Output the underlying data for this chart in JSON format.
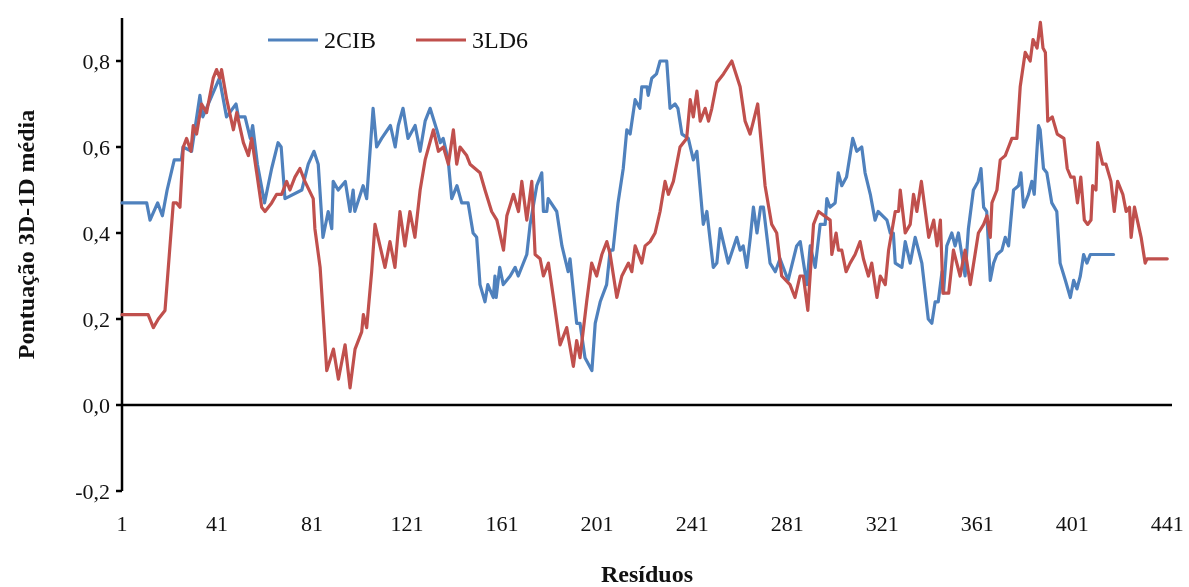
{
  "chart_data": {
    "type": "line",
    "xlabel": "Resíduos",
    "ylabel": "Pontuação 3D-1D média",
    "xlim": [
      1,
      443
    ],
    "xticks": [
      1,
      41,
      81,
      121,
      161,
      201,
      241,
      281,
      321,
      361,
      401,
      441
    ],
    "ylim": [
      -0.2,
      0.9
    ],
    "yticks": [
      {
        "value": -0.2,
        "label": "-0,2"
      },
      {
        "value": 0,
        "label": "0,0"
      },
      {
        "value": 0.2,
        "label": "0,2"
      },
      {
        "value": 0.4,
        "label": "0,4"
      },
      {
        "value": 0.6,
        "label": "0,6"
      },
      {
        "value": 0.8,
        "label": "0,8"
      }
    ],
    "legend": "top",
    "marker": "none",
    "line_style": "solid",
    "series": [
      {
        "name": "2CIB",
        "color": "#4f81bd",
        "x": [
          1,
          11.4,
          12.8,
          16,
          18,
          20,
          23,
          26,
          26.7,
          30.3,
          33.8,
          35,
          42,
          45,
          49,
          50,
          52.8,
          55,
          56,
          58,
          61,
          64,
          66.7,
          68,
          69.6,
          76.7,
          79.4,
          81.8,
          83.6,
          85.6,
          87.8,
          89.3,
          89.9,
          92,
          95,
          97,
          98.3,
          99,
          102.5,
          104,
          106.7,
          108.2,
          110.3,
          114,
          116,
          117.3,
          119.3,
          121.4,
          124.4,
          126.5,
          128.6,
          130.7,
          133.5,
          135,
          136.2,
          138.3,
          139.8,
          142,
          144,
          146.7,
          148.8,
          150.3,
          151.7,
          153.8,
          155,
          157.3,
          158,
          158.5,
          160,
          161.5,
          164.4,
          166.5,
          167.8,
          171.4,
          172.8,
          175.6,
          177.7,
          178.4,
          179.8,
          180.4,
          184,
          186.2,
          188.8,
          189.6,
          192.4,
          193.8,
          195.9,
          198.8,
          200.2,
          202.3,
          205,
          206.5,
          207.7,
          209.8,
          212,
          213.5,
          214.9,
          217,
          219,
          219.8,
          222,
          222.5,
          224,
          226,
          227.5,
          230.3,
          231.7,
          233.8,
          235,
          236.7,
          239.4,
          241.5,
          243,
          245.7,
          247.2,
          249.9,
          251.4,
          252.8,
          256.2,
          259.8,
          261.2,
          262.5,
          264,
          265.5,
          266.8,
          268.3,
          269.8,
          271,
          273.8,
          276,
          278,
          281.4,
          285,
          286.5,
          289.3,
          290.7,
          292.8,
          294.9,
          297,
          297.7,
          299,
          301.2,
          302.5,
          304,
          306,
          308.6,
          310.3,
          312.4,
          313.8,
          316,
          318,
          319.3,
          323,
          324.4,
          325.7,
          326.5,
          329.3,
          330.7,
          332.8,
          334.9,
          337.7,
          340.4,
          341.9,
          343.3,
          344.6,
          346.2,
          346.8,
          348.2,
          350.3,
          351.7,
          353.1,
          355.9,
          357.3,
          359.4,
          361.4,
          362.6,
          363.7,
          365,
          366.5,
          367.9,
          369.3,
          371.4,
          372.8,
          374.2,
          376.3,
          378.4,
          379.4,
          380.5,
          382.6,
          384,
          385,
          386.8,
          387.5,
          388.9,
          390.3,
          392.4,
          394.5,
          395.9,
          398.1,
          400.2,
          401.6,
          403,
          404.4,
          405.8,
          407.2,
          408.6,
          418.4
        ],
        "values": [
          0.47,
          0.47,
          0.43,
          0.47,
          0.44,
          0.5,
          0.57,
          0.57,
          0.6,
          0.59,
          0.72,
          0.67,
          0.76,
          0.67,
          0.7,
          0.67,
          0.67,
          0.62,
          0.65,
          0.56,
          0.47,
          0.55,
          0.61,
          0.6,
          0.48,
          0.5,
          0.56,
          0.59,
          0.56,
          0.39,
          0.45,
          0.41,
          0.52,
          0.5,
          0.52,
          0.45,
          0.5,
          0.45,
          0.51,
          0.48,
          0.69,
          0.6,
          0.62,
          0.65,
          0.6,
          0.65,
          0.69,
          0.62,
          0.65,
          0.59,
          0.66,
          0.69,
          0.64,
          0.61,
          0.62,
          0.57,
          0.48,
          0.51,
          0.47,
          0.47,
          0.4,
          0.39,
          0.28,
          0.24,
          0.28,
          0.25,
          0.3,
          0.25,
          0.32,
          0.28,
          0.3,
          0.32,
          0.3,
          0.35,
          0.42,
          0.51,
          0.54,
          0.45,
          0.45,
          0.48,
          0.45,
          0.37,
          0.31,
          0.34,
          0.19,
          0.19,
          0.11,
          0.08,
          0.19,
          0.24,
          0.28,
          0.36,
          0.36,
          0.47,
          0.55,
          0.64,
          0.63,
          0.71,
          0.69,
          0.74,
          0.74,
          0.72,
          0.76,
          0.77,
          0.8,
          0.8,
          0.69,
          0.7,
          0.69,
          0.63,
          0.62,
          0.57,
          0.59,
          0.42,
          0.45,
          0.32,
          0.33,
          0.41,
          0.33,
          0.39,
          0.36,
          0.37,
          0.32,
          0.39,
          0.46,
          0.4,
          0.46,
          0.46,
          0.33,
          0.31,
          0.34,
          0.29,
          0.37,
          0.38,
          0.28,
          0.37,
          0.32,
          0.42,
          0.42,
          0.48,
          0.46,
          0.47,
          0.54,
          0.51,
          0.53,
          0.62,
          0.59,
          0.6,
          0.54,
          0.49,
          0.43,
          0.45,
          0.43,
          0.4,
          0.4,
          0.33,
          0.32,
          0.38,
          0.33,
          0.39,
          0.33,
          0.2,
          0.19,
          0.24,
          0.24,
          0.31,
          0.26,
          0.37,
          0.4,
          0.37,
          0.4,
          0.3,
          0.41,
          0.5,
          0.52,
          0.55,
          0.46,
          0.45,
          0.29,
          0.33,
          0.35,
          0.36,
          0.39,
          0.37,
          0.5,
          0.51,
          0.54,
          0.46,
          0.49,
          0.52,
          0.49,
          0.65,
          0.64,
          0.55,
          0.54,
          0.47,
          0.45,
          0.33,
          0.29,
          0.25,
          0.29,
          0.27,
          0.3,
          0.35,
          0.33,
          0.35,
          0.35
        ]
      },
      {
        "name": "3LD6",
        "color": "#c0504d",
        "x": [
          1,
          12,
          14.2,
          16.3,
          17.7,
          19.1,
          20.5,
          22.6,
          24,
          25.4,
          26.8,
          28.2,
          30,
          31,
          32.4,
          34.5,
          36.6,
          39.4,
          40.8,
          42.2,
          42.9,
          45.1,
          47.9,
          49.3,
          52.1,
          54.2,
          55.6,
          59.8,
          61.2,
          64,
          66.1,
          68.2,
          70.3,
          71.7,
          73.8,
          75.9,
          78,
          81.5,
          82.2,
          84.4,
          87.2,
          90,
          92.1,
          94.9,
          97,
          99.1,
          101.9,
          102.6,
          104,
          106.1,
          107.5,
          111.7,
          113.8,
          115.9,
          118,
          120.1,
          122.2,
          124.3,
          126.5,
          128.6,
          132.1,
          134.2,
          136.3,
          138.4,
          140.5,
          141.9,
          143.3,
          146.1,
          147.5,
          149.6,
          151.7,
          153.8,
          156.6,
          158.8,
          161.6,
          163,
          165.8,
          167.9,
          169.3,
          171.4,
          173.5,
          174.9,
          177,
          178.4,
          180.5,
          182.6,
          185.4,
          188.2,
          191,
          192.4,
          193.8,
          196.6,
          198.7,
          200.8,
          203,
          205.1,
          206.5,
          209.3,
          211.4,
          214.2,
          215.6,
          217,
          219.8,
          221.2,
          223.3,
          225.4,
          227.5,
          229.6,
          231,
          233.1,
          235.9,
          238.7,
          240.2,
          241.5,
          243,
          244.4,
          246.5,
          247.9,
          249.3,
          251.4,
          254.2,
          257.7,
          261.2,
          263.3,
          265.4,
          266.8,
          268.6,
          271.7,
          274.5,
          276.6,
          278.7,
          282.2,
          284.3,
          286.4,
          287.8,
          289.7,
          292.1,
          294.2,
          299.1,
          299.8,
          301.6,
          302.6,
          304,
          305.8,
          307.5,
          309.6,
          311.7,
          313.1,
          315.2,
          316.6,
          318.8,
          320.2,
          322.3,
          323.7,
          326.5,
          327.9,
          328.6,
          330.7,
          332.8,
          334.2,
          335.6,
          337.5,
          340.6,
          342.7,
          344.1,
          345.5,
          346.6,
          349,
          351,
          353.8,
          355.9,
          358.1,
          361.5,
          363.7,
          365.1,
          366.5,
          367.2,
          369.3,
          370.7,
          372.8,
          374.2,
          375.6,
          377.7,
          379.1,
          381.2,
          383.3,
          384.5,
          386.2,
          387.6,
          388.7,
          389.7,
          390.7,
          392.6,
          394.7,
          397.5,
          398.9,
          400.4,
          401.8,
          403.2,
          404.6,
          406.1,
          407.5,
          408.9,
          409.6,
          411,
          411.7,
          413.8,
          415.2,
          417.3,
          418.7,
          420.1,
          422.3,
          423.7,
          425.1,
          425.8,
          427.2,
          430,
          431.7,
          432.5,
          441
        ],
        "values": [
          0.21,
          0.21,
          0.18,
          0.2,
          0.21,
          0.22,
          0.32,
          0.47,
          0.47,
          0.46,
          0.6,
          0.62,
          0.59,
          0.65,
          0.63,
          0.7,
          0.68,
          0.76,
          0.78,
          0.76,
          0.78,
          0.71,
          0.64,
          0.68,
          0.61,
          0.58,
          0.62,
          0.46,
          0.45,
          0.47,
          0.49,
          0.49,
          0.52,
          0.5,
          0.53,
          0.55,
          0.52,
          0.48,
          0.41,
          0.32,
          0.08,
          0.13,
          0.06,
          0.14,
          0.04,
          0.13,
          0.17,
          0.21,
          0.18,
          0.31,
          0.42,
          0.32,
          0.38,
          0.32,
          0.45,
          0.37,
          0.45,
          0.39,
          0.5,
          0.57,
          0.64,
          0.59,
          0.6,
          0.56,
          0.64,
          0.56,
          0.6,
          0.58,
          0.56,
          0.55,
          0.54,
          0.5,
          0.45,
          0.43,
          0.36,
          0.44,
          0.49,
          0.45,
          0.52,
          0.43,
          0.52,
          0.35,
          0.34,
          0.3,
          0.33,
          0.25,
          0.14,
          0.18,
          0.09,
          0.15,
          0.11,
          0.24,
          0.33,
          0.3,
          0.35,
          0.38,
          0.35,
          0.25,
          0.3,
          0.33,
          0.31,
          0.37,
          0.33,
          0.37,
          0.38,
          0.4,
          0.45,
          0.52,
          0.49,
          0.52,
          0.6,
          0.62,
          0.71,
          0.67,
          0.73,
          0.66,
          0.69,
          0.66,
          0.69,
          0.75,
          0.77,
          0.8,
          0.74,
          0.66,
          0.63,
          0.66,
          0.7,
          0.51,
          0.42,
          0.4,
          0.3,
          0.28,
          0.25,
          0.3,
          0.3,
          0.22,
          0.42,
          0.45,
          0.43,
          0.35,
          0.4,
          0.36,
          0.36,
          0.31,
          0.33,
          0.35,
          0.38,
          0.34,
          0.3,
          0.33,
          0.25,
          0.3,
          0.28,
          0.36,
          0.45,
          0.45,
          0.5,
          0.4,
          0.42,
          0.49,
          0.45,
          0.52,
          0.39,
          0.43,
          0.37,
          0.43,
          0.26,
          0.26,
          0.36,
          0.3,
          0.36,
          0.28,
          0.4,
          0.42,
          0.44,
          0.39,
          0.47,
          0.5,
          0.57,
          0.58,
          0.6,
          0.62,
          0.62,
          0.74,
          0.82,
          0.8,
          0.85,
          0.83,
          0.89,
          0.83,
          0.82,
          0.66,
          0.67,
          0.63,
          0.62,
          0.55,
          0.53,
          0.53,
          0.47,
          0.53,
          0.43,
          0.42,
          0.43,
          0.51,
          0.5,
          0.61,
          0.56,
          0.56,
          0.52,
          0.45,
          0.52,
          0.49,
          0.45,
          0.46,
          0.39,
          0.46,
          0.39,
          0.33,
          0.34,
          0.34
        ]
      }
    ]
  }
}
